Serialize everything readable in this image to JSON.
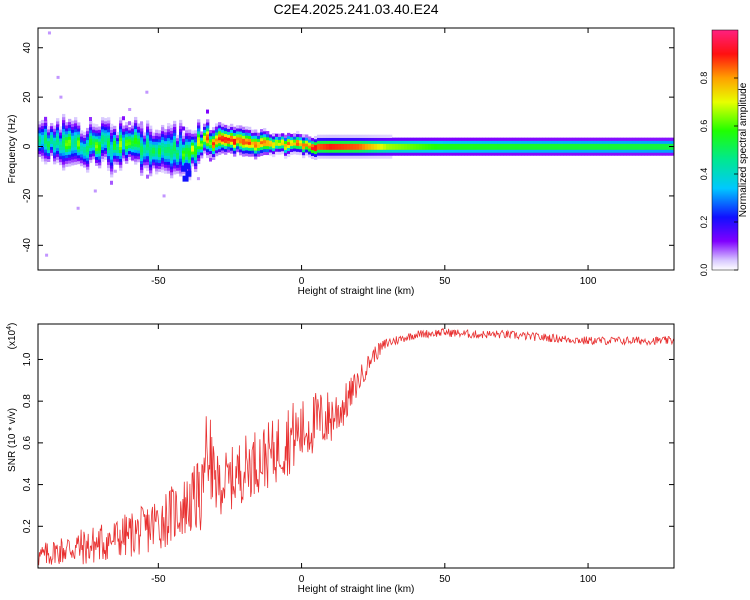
{
  "title": "C2E4.2025.241.03.40.E24",
  "chart_data": [
    {
      "type": "heatmap",
      "xlabel": "Height of straight line (km)",
      "ylabel": "Frequency (Hz)",
      "xlim": [
        -92,
        130
      ],
      "ylim": [
        -50,
        48
      ],
      "xticks": [
        -50,
        0,
        50,
        100
      ],
      "xtick_labels": [
        "-50",
        "0",
        "50",
        "100"
      ],
      "yticks": [
        -40,
        -20,
        0,
        20,
        40
      ],
      "ytick_labels": [
        "-40",
        "-20",
        "0",
        "20",
        "40"
      ],
      "colorbar": {
        "label": "Normalized spectral amplitude",
        "range": [
          0,
          1
        ],
        "ticks": [
          0.0,
          0.2,
          0.4,
          0.6,
          0.8
        ],
        "tick_labels": [
          "0.0",
          "0.2",
          "0.4",
          "0.6",
          "0.8"
        ]
      },
      "ridge": {
        "x": [
          -90,
          -85,
          -80,
          -75,
          -70,
          -65,
          -60,
          -55,
          -50,
          -45,
          -40,
          -35,
          -30,
          -25,
          -20,
          -15,
          -10,
          -5,
          0,
          5,
          10,
          20,
          30,
          50,
          80,
          110,
          130
        ],
        "freq": [
          2,
          1,
          3,
          0,
          2,
          -1,
          1,
          0,
          -1,
          -2,
          -3,
          2,
          3,
          3,
          2,
          1,
          1,
          1,
          1,
          0,
          0,
          0,
          0,
          0,
          0,
          0,
          0
        ],
        "halfwidth": [
          6,
          7,
          7,
          6,
          6,
          7,
          6,
          7,
          6,
          8,
          7,
          5,
          5,
          4,
          4,
          4,
          3,
          3,
          3,
          3,
          3,
          3,
          3,
          3,
          3,
          3,
          3
        ],
        "amplitude": [
          0.45,
          0.5,
          0.55,
          0.5,
          0.55,
          0.5,
          0.6,
          0.55,
          0.5,
          0.55,
          0.5,
          0.75,
          0.85,
          0.9,
          0.85,
          0.85,
          0.75,
          0.8,
          0.85,
          0.9,
          0.95,
          0.9,
          0.7,
          0.6,
          0.58,
          0.57,
          0.56
        ]
      }
    },
    {
      "type": "line",
      "xlabel": "Height of straight line (km)",
      "ylabel": "SNR (10 * v/v)",
      "y_multiplier": "(x10",
      "y_multiplier_exp": "4",
      "y_multiplier_close": ")",
      "xlim": [
        -92,
        130
      ],
      "ylim": [
        0.0,
        1.17
      ],
      "xticks": [
        -50,
        0,
        50,
        100
      ],
      "xtick_labels": [
        "-50",
        "0",
        "50",
        "100"
      ],
      "yticks": [
        0.2,
        0.4,
        0.6,
        0.8,
        1.0
      ],
      "ytick_labels": [
        "0.2",
        "0.4",
        "0.6",
        "0.8",
        "1.0"
      ],
      "series": [
        {
          "name": "SNR",
          "color": "#e83030",
          "x": [
            -92,
            -85,
            -80,
            -75,
            -70,
            -65,
            -60,
            -55,
            -50,
            -45,
            -40,
            -35,
            -33,
            -30,
            -25,
            -20,
            -15,
            -10,
            -5,
            0,
            5,
            10,
            15,
            20,
            25,
            30,
            35,
            40,
            50,
            60,
            70,
            80,
            90,
            100,
            110,
            120,
            130
          ],
          "y": [
            0.05,
            0.08,
            0.1,
            0.1,
            0.12,
            0.14,
            0.16,
            0.18,
            0.22,
            0.26,
            0.3,
            0.35,
            0.6,
            0.4,
            0.42,
            0.48,
            0.52,
            0.55,
            0.62,
            0.65,
            0.7,
            0.72,
            0.78,
            0.9,
            1.02,
            1.08,
            1.1,
            1.12,
            1.13,
            1.12,
            1.12,
            1.11,
            1.1,
            1.09,
            1.09,
            1.09,
            1.09
          ],
          "noise": [
            0.06,
            0.07,
            0.09,
            0.09,
            0.1,
            0.1,
            0.11,
            0.12,
            0.14,
            0.14,
            0.15,
            0.18,
            0.22,
            0.15,
            0.15,
            0.16,
            0.16,
            0.16,
            0.18,
            0.16,
            0.15,
            0.14,
            0.1,
            0.06,
            0.04,
            0.03,
            0.02,
            0.02,
            0.02,
            0.02,
            0.02,
            0.02,
            0.02,
            0.02,
            0.02,
            0.02,
            0.02
          ]
        }
      ]
    }
  ]
}
